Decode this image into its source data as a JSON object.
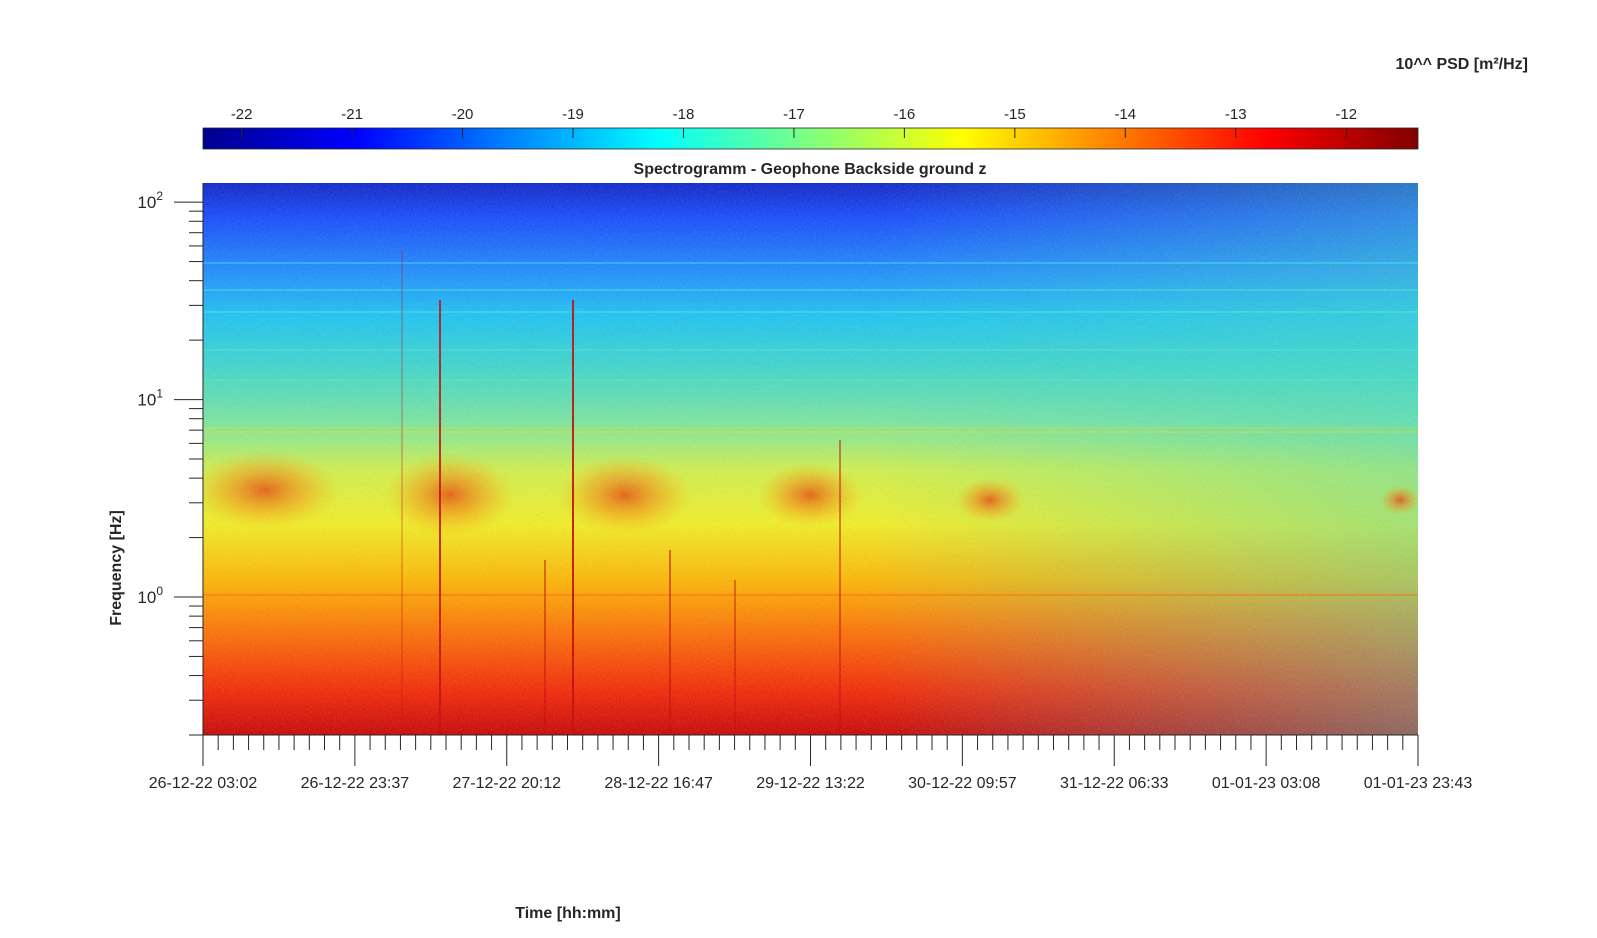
{
  "chart_data": {
    "type": "heatmap",
    "title": "Spectrogramm - Geophone Backside ground z",
    "xlabel": "Time [hh:mm]",
    "ylabel": "Frequency [Hz]",
    "yscale": "log",
    "ylim": [
      0.2,
      125
    ],
    "x_tick_labels": [
      "26-12-22 03:02",
      "26-12-22 23:37",
      "27-12-22 20:12",
      "28-12-22 16:47",
      "29-12-22 13:22",
      "30-12-22 09:57",
      "31-12-22 06:33",
      "01-01-23 03:08",
      "01-01-23 23:43"
    ],
    "y_ticks": [
      {
        "value": 1,
        "base": "10",
        "exp": "0"
      },
      {
        "value": 10,
        "base": "10",
        "exp": "1"
      },
      {
        "value": 100,
        "base": "10",
        "exp": "2"
      }
    ],
    "colorbar": {
      "label": "10^^ PSD [m²/Hz]",
      "colormap": "jet",
      "range": [
        -22.35,
        -11.35
      ],
      "ticks": [
        "-22",
        "-21",
        "-20",
        "-19",
        "-18",
        "-17",
        "-16",
        "-15",
        "-14",
        "-13",
        "-12"
      ],
      "tick_values": [
        -22,
        -21,
        -20,
        -19,
        -18,
        -17,
        -16,
        -15,
        -14,
        -13,
        -12
      ]
    },
    "grid": false
  }
}
